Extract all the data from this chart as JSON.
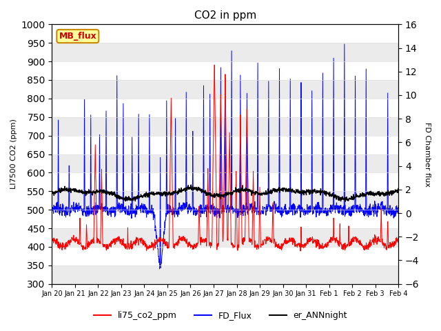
{
  "title": "CO2 in ppm",
  "ylabel_left": "LI7500 CO2 (ppm)",
  "ylabel_right": "FD Chamber flux",
  "ylim_left": [
    300,
    1000
  ],
  "ylim_right": [
    -6,
    16
  ],
  "yticks_left": [
    300,
    350,
    400,
    450,
    500,
    550,
    600,
    650,
    700,
    750,
    800,
    850,
    900,
    950,
    1000
  ],
  "yticks_right": [
    -6,
    -4,
    -2,
    0,
    2,
    4,
    6,
    8,
    10,
    12,
    14,
    16
  ],
  "x_labels": [
    "Jan 20",
    "Jan 21",
    "Jan 22",
    "Jan 23",
    "Jan 24",
    "Jan 25",
    "Jan 26",
    "Jan 27",
    "Jan 28",
    "Jan 29",
    "Jan 30",
    "Jan 31",
    "Feb 1",
    "Feb 2",
    "Feb 3",
    "Feb 4"
  ],
  "color_red": "#ff0000",
  "color_blue": "#0000ff",
  "color_black": "#000000",
  "legend_labels": [
    "li75_co2_ppm",
    "FD_Flux",
    "er_ANNnight"
  ],
  "annotation_text": "MB_flux",
  "annotation_box_facecolor": "#ffff99",
  "annotation_box_edgecolor": "#cc8800",
  "background_color": "#ffffff",
  "grid_color": "#e0e0e0",
  "stripe_color": "#ebebeb"
}
